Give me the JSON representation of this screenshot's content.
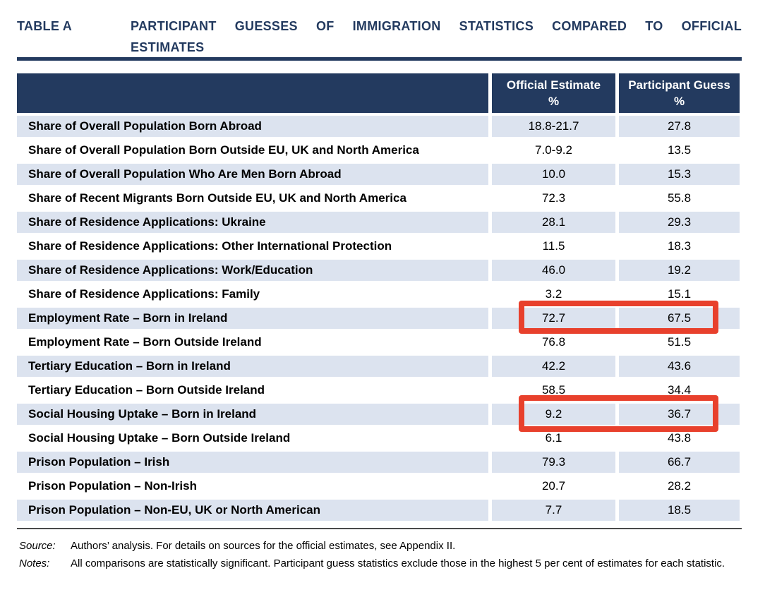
{
  "title": {
    "label": "TABLE A",
    "line1": "PARTICIPANT GUESSES OF IMMIGRATION STATISTICS COMPARED TO OFFICIAL",
    "line2": "ESTIMATES"
  },
  "table": {
    "columns": [
      {
        "label": ""
      },
      {
        "label": "Official Estimate",
        "unit": "%"
      },
      {
        "label": "Participant Guess",
        "unit": "%"
      }
    ],
    "rows": [
      {
        "label": "Share of Overall Population Born Abroad",
        "official": "18.8-21.7",
        "guess": "27.8"
      },
      {
        "label": "Share of Overall Population Born Outside EU, UK and North America",
        "official": "7.0-9.2",
        "guess": "13.5"
      },
      {
        "label": "Share of Overall Population Who Are Men Born Abroad",
        "official": "10.0",
        "guess": "15.3"
      },
      {
        "label": "Share of Recent Migrants Born Outside EU, UK and North America",
        "official": "72.3",
        "guess": "55.8"
      },
      {
        "label": "Share of Residence Applications: Ukraine",
        "official": "28.1",
        "guess": "29.3"
      },
      {
        "label": "Share of Residence Applications: Other International Protection",
        "official": "11.5",
        "guess": "18.3"
      },
      {
        "label": "Share of Residence Applications: Work/Education",
        "official": "46.0",
        "guess": "19.2"
      },
      {
        "label": "Share of Residence Applications: Family",
        "official": "3.2",
        "guess": "15.1"
      },
      {
        "label": "Employment Rate – Born in Ireland",
        "official": "72.7",
        "guess": "67.5"
      },
      {
        "label": "Employment Rate – Born Outside Ireland",
        "official": "76.8",
        "guess": "51.5"
      },
      {
        "label": "Tertiary Education – Born in Ireland",
        "official": "42.2",
        "guess": "43.6"
      },
      {
        "label": "Tertiary Education – Born Outside Ireland",
        "official": "58.5",
        "guess": "34.4"
      },
      {
        "label": "Social Housing Uptake – Born in Ireland",
        "official": "9.2",
        "guess": "36.7"
      },
      {
        "label": "Social Housing Uptake – Born Outside Ireland",
        "official": "6.1",
        "guess": "43.8"
      },
      {
        "label": "Prison Population – Irish",
        "official": "79.3",
        "guess": "66.7"
      },
      {
        "label": "Prison Population – Non-Irish",
        "official": "20.7",
        "guess": "28.2"
      },
      {
        "label": "Prison Population – Non-EU, UK or North American",
        "official": "7.7",
        "guess": "18.5"
      }
    ]
  },
  "annotations": {
    "highlight_color": "#E8402C",
    "highlighted_rows": [
      "Employment Rate – Born in Ireland",
      "Social Housing Uptake – Born in Ireland"
    ]
  },
  "colors": {
    "navy": "#233A5F",
    "row_shade": "#DCE3EF"
  },
  "footnotes": {
    "source_label": "Source:",
    "source_text": "Authors’ analysis. For details on sources for the official estimates, see Appendix II.",
    "notes_label": "Notes:",
    "notes_text": "All comparisons are statistically significant. Participant guess statistics exclude those in the highest 5 per cent of estimates for each statistic."
  }
}
